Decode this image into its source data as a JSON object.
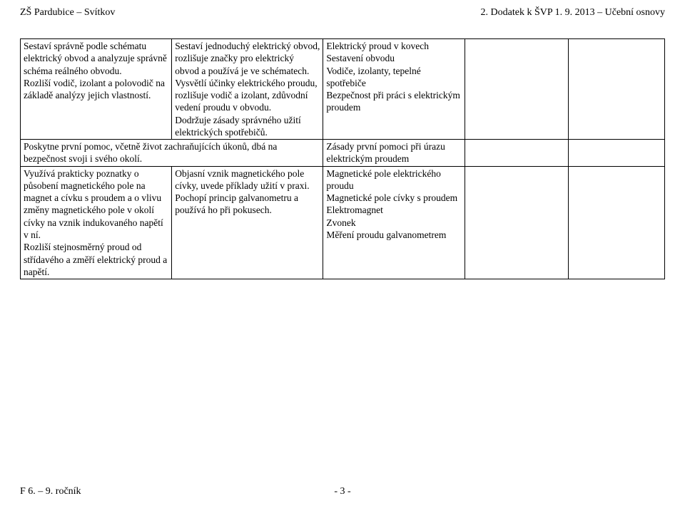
{
  "header": {
    "left": "ZŠ Pardubice – Svítkov",
    "right": "2. Dodatek k ŠVP 1. 9. 2013 – Učební osnovy"
  },
  "rows": [
    {
      "c1": "Sestaví správně podle schématu elektrický obvod a analyzuje správně schéma reálného obvodu.\nRozliší vodič, izolant a polovodič na základě analýzy jejich vlastností.",
      "c2": "Sestaví jednoduchý elektrický obvod, rozlišuje značky pro elektrický obvod a používá je ve schématech.\nVysvětlí účinky elektrického proudu, rozlišuje vodič a izolant, zdůvodní vedení proudu v obvodu.\nDodržuje zásady správného užití elektrických spotřebičů.",
      "c3": "Elektrický proud v kovech\nSestavení obvodu\nVodiče, izolanty, tepelné spotřebiče\nBezpečnost při práci s elektrickým proudem",
      "c4": "",
      "c5": ""
    },
    {
      "c12": "Poskytne první pomoc, včetně život zachraňujících úkonů, dbá na bezpečnost svoji i svého okolí.",
      "c3": "Zásady první pomoci při úrazu elektrickým proudem",
      "c4": "",
      "c5": ""
    },
    {
      "c1": "Využívá prakticky poznatky o působení magnetického pole na magnet a cívku s proudem a o vlivu změny magnetického pole v okolí cívky na vznik indukovaného napětí v ní.\nRozliší stejnosměrný proud od střídavého a změří elektrický proud a napětí.",
      "c2": "Objasní vznik magnetického pole cívky, uvede příklady užití v praxi.\nPochopí princip galvanometru a používá ho při pokusech.",
      "c3": "Magnetické pole elektrického proudu\nMagnetické pole cívky s proudem\nElektromagnet\nZvonek\nMěření proudu galvanometrem",
      "c4": "",
      "c5": ""
    }
  ],
  "footer": {
    "left": "F 6. – 9. ročník",
    "page": "- 3 -"
  }
}
